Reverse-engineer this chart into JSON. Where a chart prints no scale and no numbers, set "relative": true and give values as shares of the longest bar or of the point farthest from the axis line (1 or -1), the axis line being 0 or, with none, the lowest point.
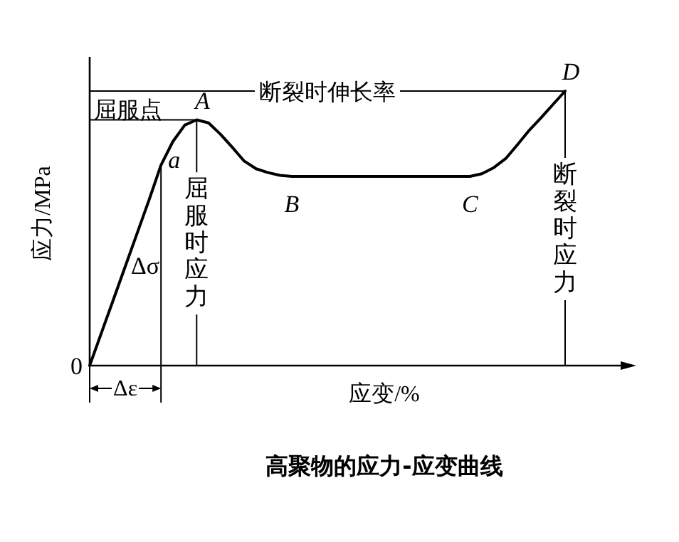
{
  "chart_data": {
    "type": "line",
    "relative": true,
    "title": "高聚物的应力-应变曲线",
    "xlabel": "应变/%",
    "ylabel": "应力/MPa",
    "categories": [
      null,
      null,
      null,
      null,
      null,
      null,
      null,
      null,
      null,
      null,
      null,
      null,
      null,
      null,
      null,
      null,
      null,
      null,
      null,
      null,
      null,
      null,
      null,
      null,
      null,
      null,
      null,
      null,
      null,
      null,
      null,
      null,
      null,
      null,
      null,
      null,
      null,
      null,
      null,
      null,
      null
    ],
    "series": [
      {
        "color": "#000000",
        "values": [
          0,
          0.121,
          0.241,
          0.362,
          0.483,
          0.604,
          0.73,
          0.816,
          0.876,
          0.895,
          0.884,
          0.843,
          0.795,
          0.745,
          0.717,
          0.703,
          0.693,
          0.689,
          0.689,
          0.689,
          0.689,
          0.689,
          0.689,
          0.689,
          0.689,
          0.689,
          0.689,
          0.689,
          0.689,
          0.689,
          0.689,
          0.689,
          0.689,
          0.699,
          0.721,
          0.754,
          0.805,
          0.858,
          0.904,
          0.952,
          1
        ]
      }
    ],
    "ref_lines": [
      {
        "axis": "y",
        "value": 1,
        "label": "断裂时伸长率"
      },
      {
        "axis": "y",
        "value": 0.895,
        "label": "屈服点"
      }
    ],
    "annotations": [
      "A",
      "a",
      "B",
      "C",
      "D",
      "Δσ",
      "Δε",
      "0",
      "屈服时应力",
      "断裂时应力"
    ],
    "line_style": "solid"
  }
}
